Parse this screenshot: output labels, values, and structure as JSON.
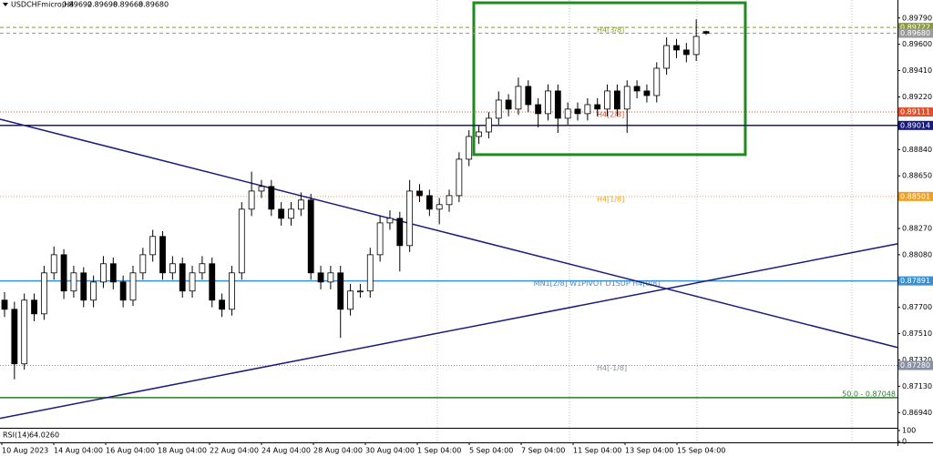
{
  "chart_data": {
    "type": "candlestick",
    "symbol": "USDCHFmicro,H4",
    "header_ohlc": [
      0.89692,
      0.89698,
      0.89668,
      {
        "value": 0.8968,
        "label": "0.89680"
      }
    ],
    "ylim": [
      0.8683,
      0.8992
    ],
    "yticks": [
      {
        "value": 0.8979,
        "label": "0.89790"
      },
      {
        "value": 0.896,
        "label": "0.89600"
      },
      {
        "value": 0.8941,
        "label": "0.89410"
      },
      {
        "value": 0.8922,
        "label": "0.89220"
      },
      {
        "value": 0.8884,
        "label": "0.88840"
      },
      {
        "value": 0.8865,
        "label": "0.88650"
      },
      {
        "value": 0.8827,
        "label": "0.88270"
      },
      {
        "value": 0.8808,
        "label": "0.88080"
      },
      {
        "value": 0.877,
        "label": "0.87700"
      },
      {
        "value": 0.8751,
        "label": "0.87510"
      },
      {
        "value": 0.8732,
        "label": "0.87320"
      },
      {
        "value": 0.8713,
        "label": "0.87130"
      },
      {
        "value": 0.8694,
        "label": "0.86940"
      }
    ],
    "x_labels": [
      "10 Aug 2023",
      "14 Aug 04:00",
      "16 Aug 04:00",
      "18 Aug 04:00",
      "22 Aug 04:00",
      "24 Aug 04:00",
      "28 Aug 04:00",
      "30 Aug 04:00",
      "1 Sep 04:00",
      "5 Sep 04:00",
      "7 Sep 04:00",
      "11 Sep 04:00",
      "13 Sep 04:00",
      "15 Sep 04:00"
    ],
    "candles": [
      [
        0.87752,
        0.8781,
        0.8763,
        0.87686
      ],
      [
        0.87686,
        0.8774,
        0.8718,
        0.87292
      ],
      [
        0.87292,
        0.878,
        0.8725,
        0.87752
      ],
      [
        0.87752,
        0.878,
        0.876,
        0.87653
      ],
      [
        0.87653,
        0.88,
        0.8761,
        0.87949
      ],
      [
        0.87949,
        0.8814,
        0.879,
        0.8808
      ],
      [
        0.8808,
        0.8812,
        0.8776,
        0.87818
      ],
      [
        0.87818,
        0.88,
        0.8777,
        0.87949
      ],
      [
        0.87949,
        0.8799,
        0.877,
        0.87752
      ],
      [
        0.87752,
        0.8793,
        0.877,
        0.87883
      ],
      [
        0.87883,
        0.8807,
        0.8784,
        0.88015
      ],
      [
        0.88015,
        0.8806,
        0.8783,
        0.87883
      ],
      [
        0.87883,
        0.8793,
        0.877,
        0.87752
      ],
      [
        0.87752,
        0.88,
        0.8771,
        0.87949
      ],
      [
        0.87949,
        0.8813,
        0.879,
        0.8808
      ],
      [
        0.8808,
        0.8826,
        0.8803,
        0.88212
      ],
      [
        0.88212,
        0.8825,
        0.879,
        0.87949
      ],
      [
        0.87949,
        0.8807,
        0.879,
        0.88015
      ],
      [
        0.88015,
        0.8806,
        0.8777,
        0.87818
      ],
      [
        0.87818,
        0.88,
        0.8777,
        0.87949
      ],
      [
        0.87949,
        0.8807,
        0.879,
        0.88015
      ],
      [
        0.88015,
        0.8806,
        0.877,
        0.87752
      ],
      [
        0.87752,
        0.878,
        0.8763,
        0.87686
      ],
      [
        0.87686,
        0.88,
        0.8764,
        0.87949
      ],
      [
        0.87949,
        0.8846,
        0.879,
        0.88409
      ],
      [
        0.88409,
        0.8868,
        0.8836,
        0.8854
      ],
      [
        0.8854,
        0.8862,
        0.8849,
        0.88573
      ],
      [
        0.88573,
        0.8862,
        0.8836,
        0.88409
      ],
      [
        0.88409,
        0.8846,
        0.8829,
        0.88343
      ],
      [
        0.88343,
        0.8846,
        0.8829,
        0.88409
      ],
      [
        0.88409,
        0.8853,
        0.8836,
        0.88475
      ],
      [
        0.88475,
        0.8852,
        0.879,
        0.87949
      ],
      [
        0.87949,
        0.88,
        0.8783,
        0.87883
      ],
      [
        0.87883,
        0.88,
        0.8783,
        0.87949
      ],
      [
        0.87949,
        0.88,
        0.8748,
        0.87686
      ],
      [
        0.87686,
        0.8787,
        0.8764,
        0.87818
      ],
      [
        0.87818,
        0.8787,
        0.8777,
        0.87818
      ],
      [
        0.87818,
        0.8813,
        0.8777,
        0.8808
      ],
      [
        0.8808,
        0.8836,
        0.8803,
        0.8831
      ],
      [
        0.8831,
        0.884,
        0.8826,
        0.88343
      ],
      [
        0.88343,
        0.8839,
        0.8796,
        0.88146
      ],
      [
        0.88146,
        0.8862,
        0.881,
        0.8854
      ],
      [
        0.8854,
        0.8859,
        0.8846,
        0.88507
      ],
      [
        0.88507,
        0.8855,
        0.8836,
        0.88409
      ],
      [
        0.88409,
        0.8849,
        0.883,
        0.88442
      ],
      [
        0.88442,
        0.8855,
        0.8839,
        0.88507
      ],
      [
        0.88507,
        0.8882,
        0.8846,
        0.8877
      ],
      [
        0.8877,
        0.8898,
        0.8872,
        0.88934
      ],
      [
        0.88934,
        0.8901,
        0.8888,
        0.88967
      ],
      [
        0.88967,
        0.8911,
        0.8892,
        0.89066
      ],
      [
        0.89066,
        0.8926,
        0.8902,
        0.89197
      ],
      [
        0.89197,
        0.8924,
        0.8908,
        0.89132
      ],
      [
        0.89132,
        0.8936,
        0.8909,
        0.89296
      ],
      [
        0.89296,
        0.8934,
        0.8911,
        0.89164
      ],
      [
        0.89164,
        0.8921,
        0.89,
        0.89099
      ],
      [
        0.89099,
        0.8931,
        0.8905,
        0.89263
      ],
      [
        0.89263,
        0.8931,
        0.8896,
        0.89066
      ],
      [
        0.89066,
        0.8918,
        0.8902,
        0.89132
      ],
      [
        0.89132,
        0.8918,
        0.8905,
        0.89099
      ],
      [
        0.89099,
        0.8921,
        0.8905,
        0.89164
      ],
      [
        0.89164,
        0.8921,
        0.8908,
        0.89132
      ],
      [
        0.89132,
        0.8931,
        0.8908,
        0.89263
      ],
      [
        0.89263,
        0.8931,
        0.8908,
        0.89132
      ],
      [
        0.89132,
        0.8934,
        0.8896,
        0.89296
      ],
      [
        0.89296,
        0.8934,
        0.8921,
        0.89263
      ],
      [
        0.89263,
        0.8931,
        0.8918,
        0.8923
      ],
      [
        0.8923,
        0.8947,
        0.8918,
        0.89427
      ],
      [
        0.89427,
        0.8965,
        0.8938,
        0.89591
      ],
      [
        0.89591,
        0.8964,
        0.895,
        0.89559
      ],
      [
        0.89559,
        0.8961,
        0.8947,
        0.89526
      ],
      [
        0.89526,
        0.8978,
        0.8948,
        0.89657
      ],
      [
        0.89692,
        0.89698,
        0.89668,
        0.8968
      ]
    ],
    "levels": [
      {
        "name": "H4[3/8]",
        "price": 0.89722,
        "color": "#8a9a3a",
        "style": "dash"
      },
      {
        "price": {
          "value": 0.8968,
          "label": "0.89680"
        },
        "color": "#9a9a9a",
        "style": "dash"
      },
      {
        "name": "H4[2/8]",
        "price": 0.89111,
        "color": "#e0502a",
        "style": "dot"
      },
      {
        "price": 0.89014,
        "color": "#1a1a7e",
        "style": "solid"
      },
      {
        "name": "H4[1/8]",
        "price": 0.88501,
        "color": "#f0a020",
        "style": "dot"
      },
      {
        "name": "MN1[2/8] W1PIVOT D1SUP H4[0/8]",
        "price": 0.87891,
        "color": "#3a8fd0",
        "style": "solid"
      },
      {
        "name": "H4[-1/8]",
        "price": {
          "value": 0.8728,
          "label": "0.87280"
        },
        "color": "#8a8fa0",
        "style": "dot"
      }
    ],
    "fibo": {
      "label": "50.0 - 0.87048",
      "value": 0.87048,
      "color": "#2a7a2a"
    },
    "trendlines": [
      {
        "from": 0.89059,
        "to": 0.8741,
        "color": "#1a1a7e"
      },
      {
        "from": 0.86898,
        "to": 0.88159,
        "color": "#1a1a7e"
      }
    ],
    "zone": {
      "top": 0.899,
      "bottom": 0.88803,
      "color": "#1f8a1f"
    },
    "rsi": {
      "name": "RSI(14)",
      "value": {
        "value": 64.026,
        "label": "64.0260"
      },
      "ylim": [
        0,
        100
      ],
      "yticks": [
        100,
        0
      ]
    }
  }
}
